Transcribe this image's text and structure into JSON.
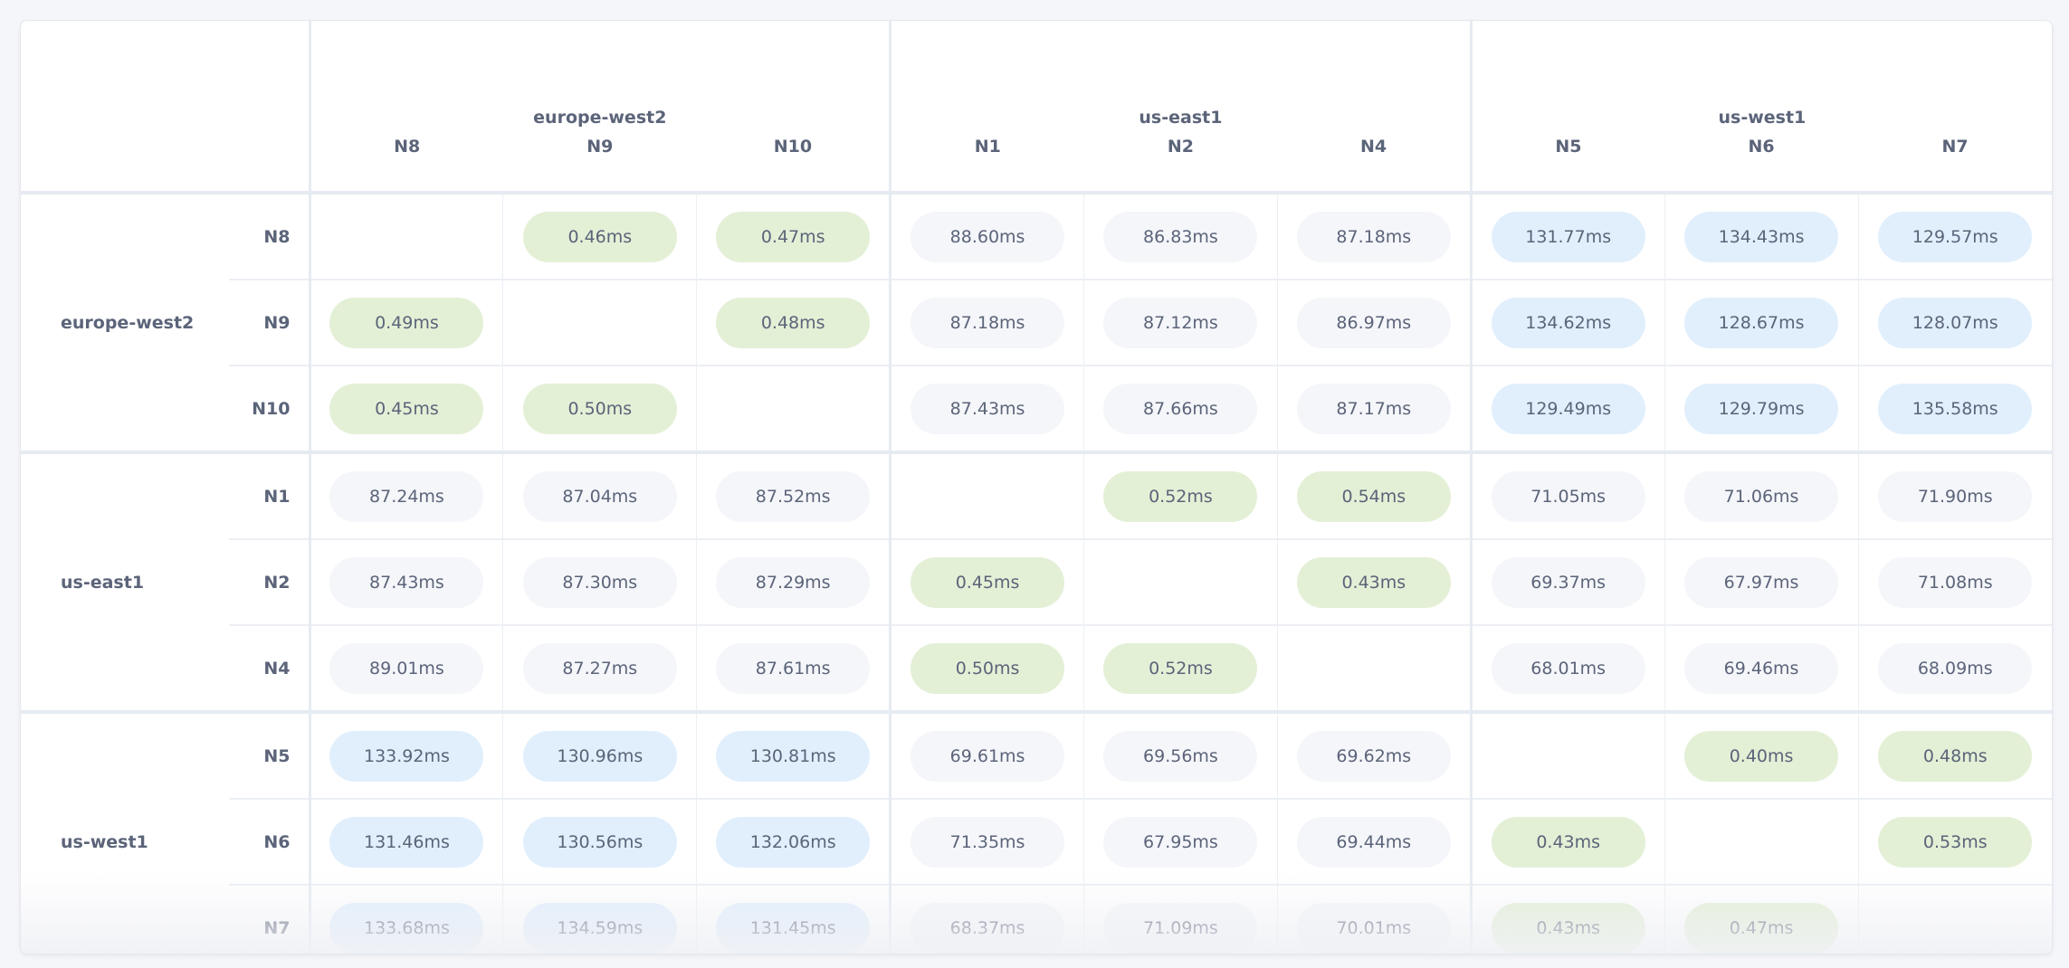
{
  "colors": {
    "same_region": "#e3f0d6",
    "far_region": "#e1effd",
    "near_region": "#f5f6fa"
  },
  "groups": [
    {
      "name": "europe-west2",
      "nodes": [
        "N8",
        "N9",
        "N10"
      ]
    },
    {
      "name": "us-east1",
      "nodes": [
        "N1",
        "N2",
        "N4"
      ]
    },
    {
      "name": "us-west1",
      "nodes": [
        "N5",
        "N6",
        "N7"
      ]
    }
  ],
  "matrix": [
    [
      null,
      "0.46ms",
      "0.47ms",
      "88.60ms",
      "86.83ms",
      "87.18ms",
      "131.77ms",
      "134.43ms",
      "129.57ms"
    ],
    [
      "0.49ms",
      null,
      "0.48ms",
      "87.18ms",
      "87.12ms",
      "86.97ms",
      "134.62ms",
      "128.67ms",
      "128.07ms"
    ],
    [
      "0.45ms",
      "0.50ms",
      null,
      "87.43ms",
      "87.66ms",
      "87.17ms",
      "129.49ms",
      "129.79ms",
      "135.58ms"
    ],
    [
      "87.24ms",
      "87.04ms",
      "87.52ms",
      null,
      "0.52ms",
      "0.54ms",
      "71.05ms",
      "71.06ms",
      "71.90ms"
    ],
    [
      "87.43ms",
      "87.30ms",
      "87.29ms",
      "0.45ms",
      null,
      "0.43ms",
      "69.37ms",
      "67.97ms",
      "71.08ms"
    ],
    [
      "89.01ms",
      "87.27ms",
      "87.61ms",
      "0.50ms",
      "0.52ms",
      null,
      "68.01ms",
      "69.46ms",
      "68.09ms"
    ],
    [
      "133.92ms",
      "130.96ms",
      "130.81ms",
      "69.61ms",
      "69.56ms",
      "69.62ms",
      null,
      "0.40ms",
      "0.48ms"
    ],
    [
      "131.46ms",
      "130.56ms",
      "132.06ms",
      "71.35ms",
      "67.95ms",
      "69.44ms",
      "0.43ms",
      null,
      "0.53ms"
    ],
    [
      "133.68ms",
      "134.59ms",
      "131.45ms",
      "68.37ms",
      "71.09ms",
      "70.01ms",
      "0.43ms",
      "0.47ms",
      null
    ]
  ]
}
